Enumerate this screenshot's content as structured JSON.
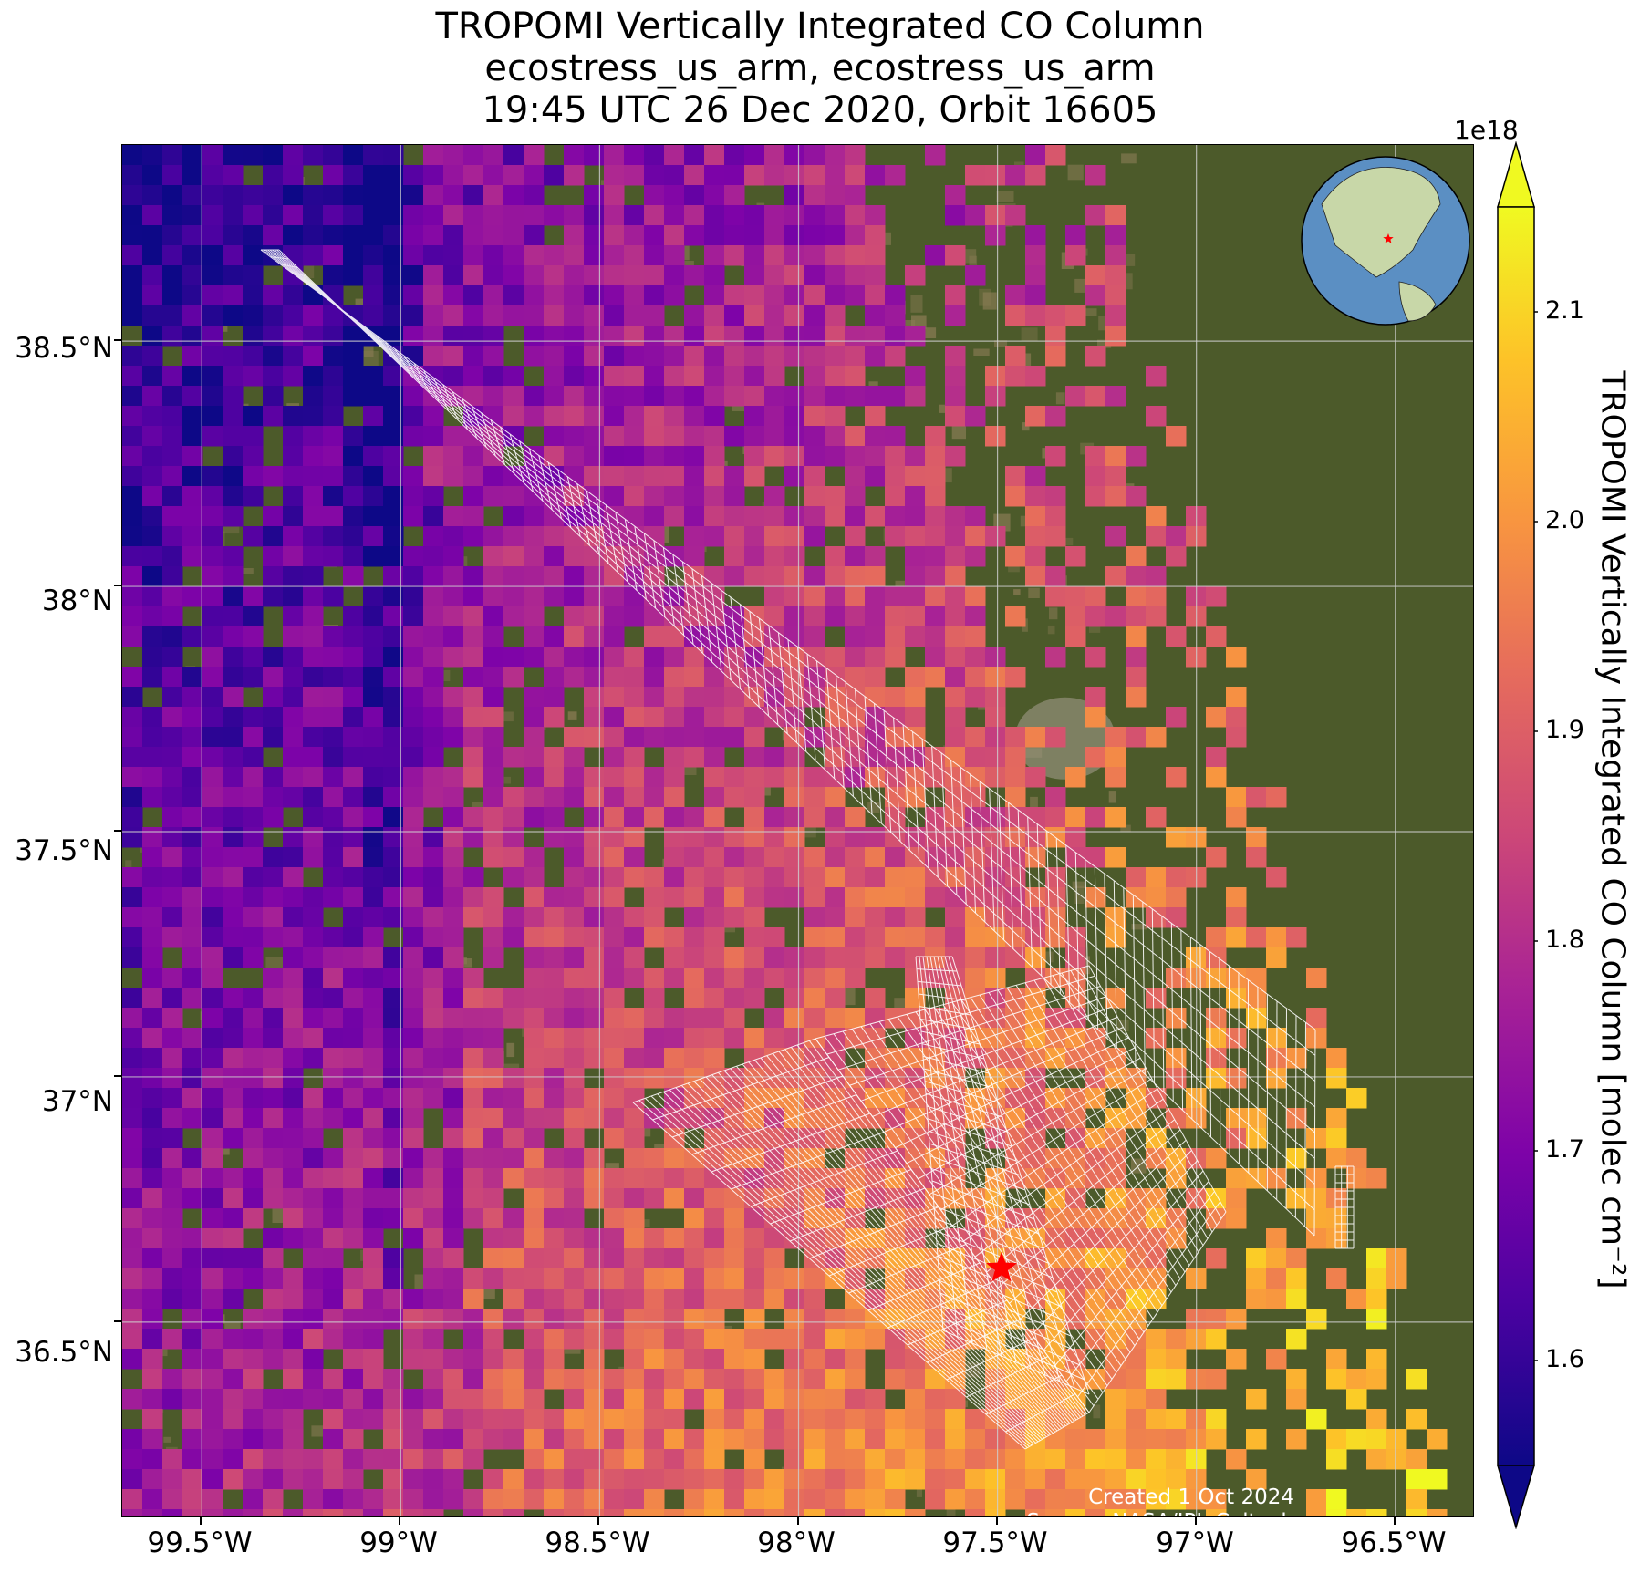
{
  "title": {
    "line1": "TROPOMI Vertically Integrated CO Column",
    "line2": "ecostress_us_arm, ecostress_us_arm",
    "line3": "19:45 UTC 26 Dec 2020, Orbit 16605"
  },
  "map": {
    "lon_range": [
      -99.7,
      -96.3
    ],
    "lat_range": [
      36.1,
      38.9
    ],
    "lat_gridlines": [
      38.5,
      38.0,
      37.5,
      37.0,
      36.5
    ],
    "lon_gridlines": [
      -99.5,
      -99.0,
      -98.5,
      -98.0,
      -97.5,
      -97.0,
      -96.5
    ],
    "lat_labels": [
      "38.5°N",
      "38°N",
      "37.5°N",
      "37°N",
      "36.5°N"
    ],
    "lon_labels": [
      "99.5°W",
      "99°W",
      "98.5°W",
      "98°W",
      "97.5°W",
      "97°W",
      "96.5°W"
    ],
    "site_marker": {
      "lon": -97.49,
      "lat": 36.61,
      "color": "#ff0000",
      "icon": "star-icon"
    },
    "basemap_colors": {
      "vegetation": "#4c5a2a",
      "cropland": "#8a7c55",
      "urban": "#a7a08f"
    },
    "overlay_stroke": "#ffffff",
    "inset_globe": {
      "icon": "globe-icon",
      "center": "North America",
      "ocean": "#5b8fc3",
      "land": "#c8d7a8",
      "marker_color": "#ff0000"
    }
  },
  "colorbar": {
    "colormap": "plasma",
    "exponent_label": "1e18",
    "label": "TROPOMI Vertically Integrated CO Column [molec cm⁻²]",
    "range": [
      1.55,
      2.15
    ],
    "ticks": [
      "1.6",
      "1.7",
      "1.8",
      "1.9",
      "2.0",
      "2.1"
    ],
    "tick_values": [
      1.6,
      1.7,
      1.8,
      1.9,
      2.0,
      2.1
    ],
    "extend": "both"
  },
  "credits": {
    "created": "Created 1 Oct 2024",
    "source": "Source: NASA/JPL-Caltech"
  }
}
